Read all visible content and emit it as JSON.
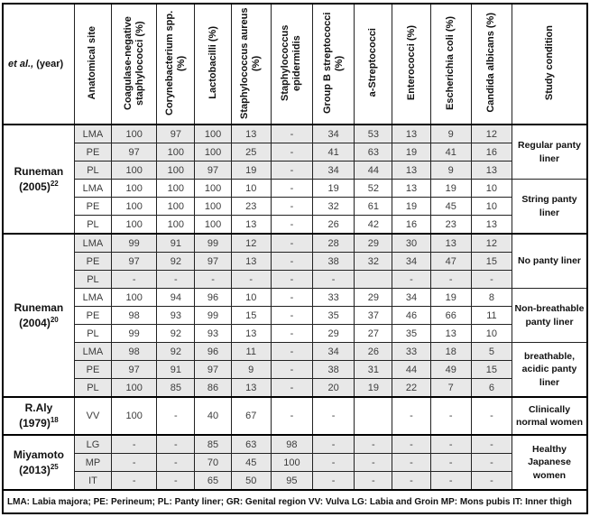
{
  "table": {
    "header": {
      "col_author_italic": "et al.,",
      "col_author_rest": "(year)",
      "col_site": "Anatomical site",
      "columns": [
        "Coagulase-negative staphylococci (%)",
        "Corynebacterium spp. (%)",
        "Lactobacilli (%)",
        "Staphylococcus aureus (%)",
        "Staphylococcus epidermidis",
        "Group B streptococci (%)",
        "a-Streptococci",
        "Enterococci (%)",
        "Escherichia coli (%)",
        "Candida albicans (%)"
      ],
      "col_condition": "Study condition"
    },
    "studies": [
      {
        "author": "Runeman",
        "year": "(2005)",
        "ref": "22",
        "tall": false,
        "groups": [
          {
            "condition": "Regular panty liner",
            "shaded": true,
            "rows": [
              {
                "site": "LMA",
                "values": [
                  "100",
                  "97",
                  "100",
                  "13",
                  "-",
                  "34",
                  "53",
                  "13",
                  "9",
                  "12"
                ]
              },
              {
                "site": "PE",
                "values": [
                  "97",
                  "100",
                  "100",
                  "25",
                  "-",
                  "41",
                  "63",
                  "19",
                  "41",
                  "16"
                ]
              },
              {
                "site": "PL",
                "values": [
                  "100",
                  "100",
                  "97",
                  "19",
                  "-",
                  "34",
                  "44",
                  "13",
                  "9",
                  "13"
                ]
              }
            ]
          },
          {
            "condition": "String panty liner",
            "shaded": false,
            "rows": [
              {
                "site": "LMA",
                "values": [
                  "100",
                  "100",
                  "100",
                  "10",
                  "-",
                  "19",
                  "52",
                  "13",
                  "19",
                  "10"
                ]
              },
              {
                "site": "PE",
                "values": [
                  "100",
                  "100",
                  "100",
                  "23",
                  "-",
                  "32",
                  "61",
                  "19",
                  "45",
                  "10"
                ]
              },
              {
                "site": "PL",
                "values": [
                  "100",
                  "100",
                  "100",
                  "13",
                  "-",
                  "26",
                  "42",
                  "16",
                  "23",
                  "13"
                ]
              }
            ]
          }
        ]
      },
      {
        "author": "Runeman",
        "year": "(2004)",
        "ref": "20",
        "tall": false,
        "groups": [
          {
            "condition": "No panty liner",
            "shaded": true,
            "rows": [
              {
                "site": "LMA",
                "values": [
                  "99",
                  "91",
                  "99",
                  "12",
                  "-",
                  "28",
                  "29",
                  "30",
                  "13",
                  "12"
                ]
              },
              {
                "site": "PE",
                "values": [
                  "97",
                  "92",
                  "97",
                  "13",
                  "-",
                  "38",
                  "32",
                  "34",
                  "47",
                  "15"
                ]
              },
              {
                "site": "PL",
                "values": [
                  "-",
                  "-",
                  "-",
                  "-",
                  "-",
                  "-",
                  "",
                  "-",
                  "-",
                  "-"
                ]
              }
            ]
          },
          {
            "condition": "Non-breathable panty liner",
            "shaded": false,
            "rows": [
              {
                "site": "LMA",
                "values": [
                  "100",
                  "94",
                  "96",
                  "10",
                  "-",
                  "33",
                  "29",
                  "34",
                  "19",
                  "8"
                ]
              },
              {
                "site": "PE",
                "values": [
                  "98",
                  "93",
                  "99",
                  "15",
                  "-",
                  "35",
                  "37",
                  "46",
                  "66",
                  "11"
                ]
              },
              {
                "site": "PL",
                "values": [
                  "99",
                  "92",
                  "93",
                  "13",
                  "-",
                  "29",
                  "27",
                  "35",
                  "13",
                  "10"
                ]
              }
            ]
          },
          {
            "condition": "breathable, acidic panty liner",
            "shaded": true,
            "rows": [
              {
                "site": "LMA",
                "values": [
                  "98",
                  "92",
                  "96",
                  "11",
                  "-",
                  "34",
                  "26",
                  "33",
                  "18",
                  "5"
                ]
              },
              {
                "site": "PE",
                "values": [
                  "97",
                  "91",
                  "97",
                  "9",
                  "-",
                  "38",
                  "31",
                  "44",
                  "49",
                  "15"
                ]
              },
              {
                "site": "PL",
                "values": [
                  "100",
                  "85",
                  "86",
                  "13",
                  "-",
                  "20",
                  "19",
                  "22",
                  "7",
                  "6"
                ]
              }
            ]
          }
        ]
      },
      {
        "author": "R.Aly",
        "year": "(1979)",
        "ref": "18",
        "tall": true,
        "groups": [
          {
            "condition": "Clinically normal women",
            "shaded": false,
            "rows": [
              {
                "site": "VV",
                "values": [
                  "100",
                  "-",
                  "40",
                  "67",
                  "-",
                  "-",
                  "",
                  "-",
                  "-",
                  "-"
                ]
              }
            ]
          }
        ]
      },
      {
        "author": "Miyamoto",
        "year": "(2013)",
        "ref": "25",
        "tall": false,
        "groups": [
          {
            "condition": "Healthy Japanese women",
            "shaded": true,
            "rows": [
              {
                "site": "LG",
                "values": [
                  "-",
                  "-",
                  "85",
                  "63",
                  "98",
                  "-",
                  "-",
                  "-",
                  "-",
                  "-"
                ]
              },
              {
                "site": "MP",
                "values": [
                  "-",
                  "-",
                  "70",
                  "45",
                  "100",
                  "-",
                  "-",
                  "-",
                  "-",
                  "-"
                ]
              },
              {
                "site": "IT",
                "values": [
                  "-",
                  "-",
                  "65",
                  "50",
                  "95",
                  "-",
                  "-",
                  "-",
                  "-",
                  "-"
                ]
              }
            ]
          }
        ]
      }
    ],
    "footnote": "LMA: Labia majora; PE: Perineum; PL: Panty liner; GR: Genital region VV: Vulva LG: Labia and Groin MP: Mons pubis IT: Inner thigh"
  }
}
